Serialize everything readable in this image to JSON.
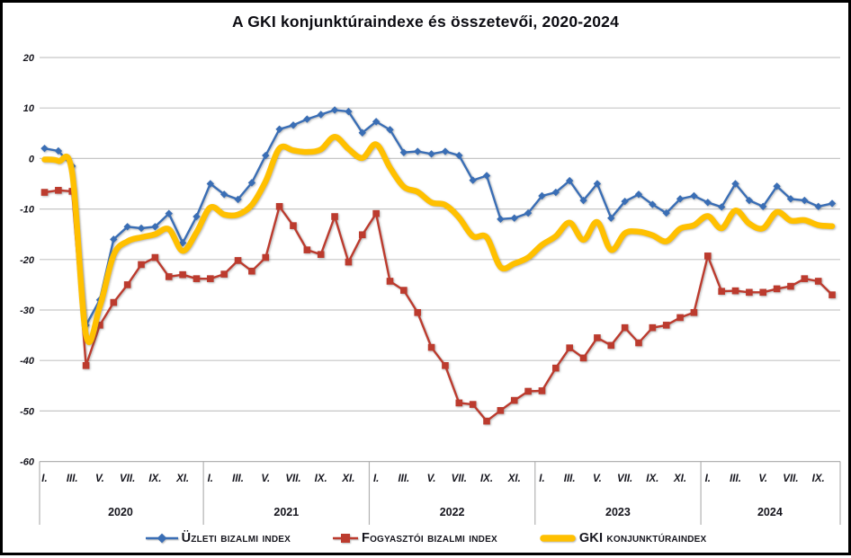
{
  "title": "A GKI konjunktúraindexe és összetevői, 2020-2024",
  "colors": {
    "business": "#3a6eb5",
    "consumer": "#bc3b2e",
    "gki": "#ffc000",
    "grid": "#c6c6c6",
    "band": "#b2b2b2",
    "text": "#15151d"
  },
  "legend": [
    {
      "id": "business",
      "label": "Üzleti bizalmi index"
    },
    {
      "id": "consumer",
      "label": "Fogyasztói bizalmi index"
    },
    {
      "id": "gki",
      "label": "GKI konjunktúraindex"
    }
  ],
  "chart_data": {
    "type": "line",
    "title": "A GKI konjunktúraindexe és összetevői, 2020-2024",
    "xlabel": "",
    "ylabel": "",
    "ylim": [
      -60,
      20
    ],
    "grid": "horizontal",
    "legend_position": "bottom",
    "y_ticks": [
      20,
      10,
      0,
      -10,
      -20,
      -30,
      -40,
      -50,
      -60
    ],
    "years": [
      {
        "label": "2020",
        "ticks": [
          "I.",
          "III.",
          "V.",
          "VII.",
          "IX.",
          "XI."
        ],
        "n_months": 12
      },
      {
        "label": "2021",
        "ticks": [
          "I.",
          "III.",
          "V.",
          "VII.",
          "IX.",
          "XI."
        ],
        "n_months": 12
      },
      {
        "label": "2022",
        "ticks": [
          "I.",
          "III.",
          "V.",
          "VII.",
          "IX.",
          "XI."
        ],
        "n_months": 12
      },
      {
        "label": "2023",
        "ticks": [
          "I.",
          "III.",
          "V.",
          "VII.",
          "IX.",
          "XI."
        ],
        "n_months": 12
      },
      {
        "label": "2024",
        "ticks": [
          "I.",
          "III.",
          "V.",
          "VII.",
          "IX."
        ],
        "n_months": 10
      }
    ],
    "series": [
      {
        "name": "Üzleti bizalmi index",
        "color": "#3a6eb5",
        "marker": "diamond",
        "smooth": false,
        "values": [
          2.0,
          1.5,
          -1.5,
          -33.0,
          -28.0,
          -16.0,
          -13.5,
          -13.8,
          -13.5,
          -10.9,
          -16.7,
          -11.5,
          -5.0,
          -7.1,
          -8.1,
          -4.8,
          0.6,
          5.8,
          6.6,
          7.8,
          8.7,
          9.6,
          9.3,
          5.1,
          7.3,
          5.7,
          1.2,
          1.4,
          0.9,
          1.4,
          0.6,
          -4.3,
          -3.4,
          -12.0,
          -11.8,
          -10.8,
          -7.4,
          -6.7,
          -4.4,
          -8.3,
          -5.0,
          -11.8,
          -8.5,
          -7.1,
          -9.1,
          -10.8,
          -8.0,
          -7.4,
          -8.7,
          -9.6,
          -5.0,
          -8.3,
          -9.5,
          -5.5,
          -8.0,
          -8.3,
          -9.5,
          -8.9
        ]
      },
      {
        "name": "Fogyasztói bizalmi index",
        "color": "#bc3b2e",
        "marker": "square",
        "smooth": false,
        "values": [
          -6.7,
          -6.3,
          -6.5,
          -41.0,
          -33.0,
          -28.5,
          -25.0,
          -21.0,
          -19.6,
          -23.4,
          -23.0,
          -23.8,
          -23.8,
          -22.9,
          -20.2,
          -22.3,
          -19.6,
          -9.5,
          -13.3,
          -18.1,
          -19.0,
          -11.5,
          -20.5,
          -15.1,
          -10.9,
          -24.3,
          -26.1,
          -30.5,
          -37.4,
          -41.0,
          -48.4,
          -48.7,
          -52.0,
          -49.9,
          -47.9,
          -46.1,
          -46.0,
          -41.5,
          -37.5,
          -39.5,
          -35.5,
          -37.0,
          -33.5,
          -36.5,
          -33.5,
          -33.0,
          -31.5,
          -30.5,
          -19.3,
          -26.3,
          -26.2,
          -26.5,
          -26.5,
          -25.8,
          -25.3,
          -23.8,
          -24.3,
          -27.0
        ]
      },
      {
        "name": "GKI konjunktúraindex",
        "color": "#ffc000",
        "marker": "none",
        "smooth": true,
        "values": [
          -0.2,
          -0.5,
          -2.8,
          -35.0,
          -29.3,
          -19.1,
          -16.4,
          -15.6,
          -15.0,
          -14.0,
          -18.3,
          -14.6,
          -9.7,
          -11.1,
          -11.1,
          -9.2,
          -4.5,
          2.0,
          1.6,
          1.3,
          1.8,
          4.3,
          1.9,
          0.1,
          2.8,
          -1.8,
          -5.6,
          -6.6,
          -8.7,
          -9.2,
          -11.7,
          -15.4,
          -15.6,
          -21.5,
          -20.8,
          -19.6,
          -17.1,
          -15.4,
          -12.7,
          -16.1,
          -12.6,
          -18.1,
          -14.8,
          -14.5,
          -15.2,
          -16.4,
          -13.9,
          -13.2,
          -11.4,
          -13.8,
          -10.3,
          -12.9,
          -13.8,
          -10.6,
          -12.3,
          -12.2,
          -13.2,
          -13.4
        ]
      }
    ]
  }
}
